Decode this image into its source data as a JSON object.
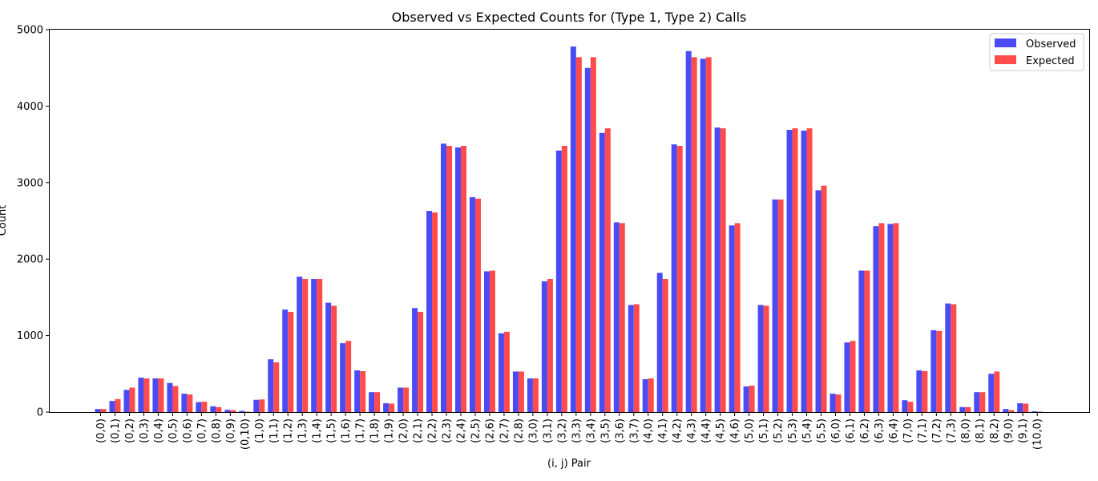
{
  "chart_data": {
    "type": "bar",
    "title": "Observed vs Expected Counts for (Type 1, Type 2) Calls",
    "xlabel": "(i, j) Pair",
    "ylabel": "Count",
    "ylim": [
      0,
      5000
    ],
    "yticks": [
      0,
      1000,
      2000,
      3000,
      4000,
      5000
    ],
    "grid": false,
    "legend_position": "top-right",
    "categories": [
      "(0,0)",
      "(0,1)",
      "(0,2)",
      "(0,3)",
      "(0,4)",
      "(0,5)",
      "(0,6)",
      "(0,7)",
      "(0,8)",
      "(0,9)",
      "(0,10)",
      "(1,0)",
      "(1,1)",
      "(1,2)",
      "(1,3)",
      "(1,4)",
      "(1,5)",
      "(1,6)",
      "(1,7)",
      "(1,8)",
      "(1,9)",
      "(2,0)",
      "(2,1)",
      "(2,2)",
      "(2,3)",
      "(2,4)",
      "(2,5)",
      "(2,6)",
      "(2,7)",
      "(2,8)",
      "(3,0)",
      "(3,1)",
      "(3,2)",
      "(3,3)",
      "(3,4)",
      "(3,5)",
      "(3,6)",
      "(3,7)",
      "(4,0)",
      "(4,1)",
      "(4,2)",
      "(4,3)",
      "(4,4)",
      "(4,5)",
      "(4,6)",
      "(5,0)",
      "(5,1)",
      "(5,2)",
      "(5,3)",
      "(5,4)",
      "(5,5)",
      "(6,0)",
      "(6,1)",
      "(6,2)",
      "(6,3)",
      "(6,4)",
      "(7,0)",
      "(7,1)",
      "(7,2)",
      "(7,3)",
      "(8,0)",
      "(8,1)",
      "(8,2)",
      "(9,0)",
      "(9,1)",
      "(10,0)"
    ],
    "series": [
      {
        "name": "Observed",
        "color": "#4b4bf5",
        "values": [
          40,
          145,
          290,
          450,
          440,
          380,
          240,
          130,
          75,
          30,
          15,
          160,
          690,
          1340,
          1770,
          1740,
          1430,
          900,
          545,
          260,
          115,
          320,
          1360,
          2630,
          3510,
          3460,
          2810,
          1840,
          1030,
          530,
          440,
          1710,
          3420,
          4780,
          4500,
          3650,
          2480,
          1400,
          430,
          1820,
          3500,
          4720,
          4620,
          3720,
          2440,
          335,
          1400,
          2780,
          3690,
          3680,
          2900,
          240,
          910,
          1850,
          2430,
          2460,
          155,
          545,
          1070,
          1420,
          65,
          260,
          500,
          40,
          115,
          10
        ]
      },
      {
        "name": "Expected",
        "color": "#ff4b4b",
        "values": [
          40,
          170,
          320,
          440,
          440,
          340,
          230,
          135,
          65,
          25,
          5,
          165,
          650,
          1310,
          1740,
          1740,
          1390,
          930,
          535,
          260,
          110,
          320,
          1310,
          2610,
          3480,
          3480,
          2790,
          1850,
          1050,
          530,
          440,
          1740,
          3480,
          4640,
          4640,
          3710,
          2470,
          1410,
          440,
          1740,
          3480,
          4640,
          4640,
          3710,
          2470,
          345,
          1390,
          2780,
          3710,
          3710,
          2960,
          230,
          930,
          1850,
          2470,
          2470,
          135,
          535,
          1060,
          1410,
          65,
          260,
          530,
          25,
          110,
          5
        ]
      }
    ]
  }
}
